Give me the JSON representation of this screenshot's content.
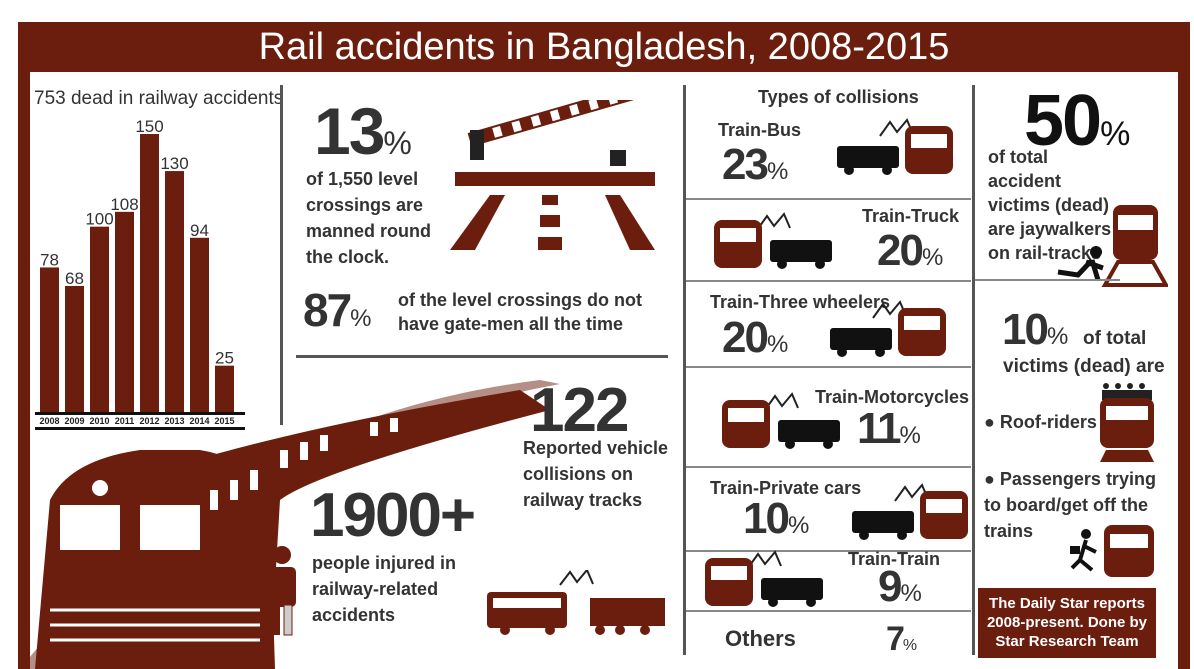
{
  "title": "Rail accidents in Bangladesh, 2008-2015",
  "colors": {
    "brand": "#6b1e0e",
    "text": "#333333"
  },
  "chart_data": {
    "type": "bar",
    "title": "753 dead in railway accidents",
    "categories": [
      "2008",
      "2009",
      "2010",
      "2011",
      "2012",
      "2013",
      "2014",
      "2015"
    ],
    "values": [
      78,
      68,
      100,
      108,
      150,
      130,
      94,
      25
    ],
    "ylim": [
      0,
      150
    ],
    "grid": false
  },
  "crossings": {
    "manned_value": "13",
    "manned_pct": "%",
    "manned_text": "of 1,550 level crossings are manned round the clock.",
    "no_gatemen_value": "87",
    "no_gatemen_pct": "%",
    "no_gatemen_text": "of the level crossings do not have gate-men all the time"
  },
  "collisions_total": {
    "value": "122",
    "text": "Reported vehicle collisions on railway tracks"
  },
  "injured": {
    "value": "1900+",
    "text": "people injured in railway-related accidents"
  },
  "collisions": {
    "title": "Types of collisions",
    "items": [
      {
        "label": "Train-Bus",
        "value": "23",
        "pct": "%",
        "icon": "train-bus-collision-icon"
      },
      {
        "label": "Train-Truck",
        "value": "20",
        "pct": "%",
        "icon": "train-truck-collision-icon"
      },
      {
        "label": "Train-Three wheelers",
        "value": "20",
        "pct": "%",
        "icon": "train-three-wheeler-collision-icon"
      },
      {
        "label": "Train-Motorcycles",
        "value": "11",
        "pct": "%",
        "icon": "train-motorcycle-collision-icon"
      },
      {
        "label": "Train-Private cars",
        "value": "10",
        "pct": "%",
        "icon": "train-car-collision-icon"
      },
      {
        "label": "Train-Train",
        "value": "9",
        "pct": "%",
        "icon": "train-train-collision-icon"
      },
      {
        "label": "Others",
        "value": "7",
        "pct": "%"
      }
    ]
  },
  "victims": {
    "jay_value": "50",
    "jay_pct": "%",
    "jay_text": "of total accident victims (dead) are jaywalkers on rail-tracks",
    "other_value": "10",
    "other_pct": "%",
    "other_text1": "of total",
    "other_text2": "victims (dead) are",
    "bullet1": "Roof-riders",
    "bullet2": "Passengers trying to board/get off the trains"
  },
  "source": "The Daily Star reports 2008-present. Done by Star Research Team"
}
